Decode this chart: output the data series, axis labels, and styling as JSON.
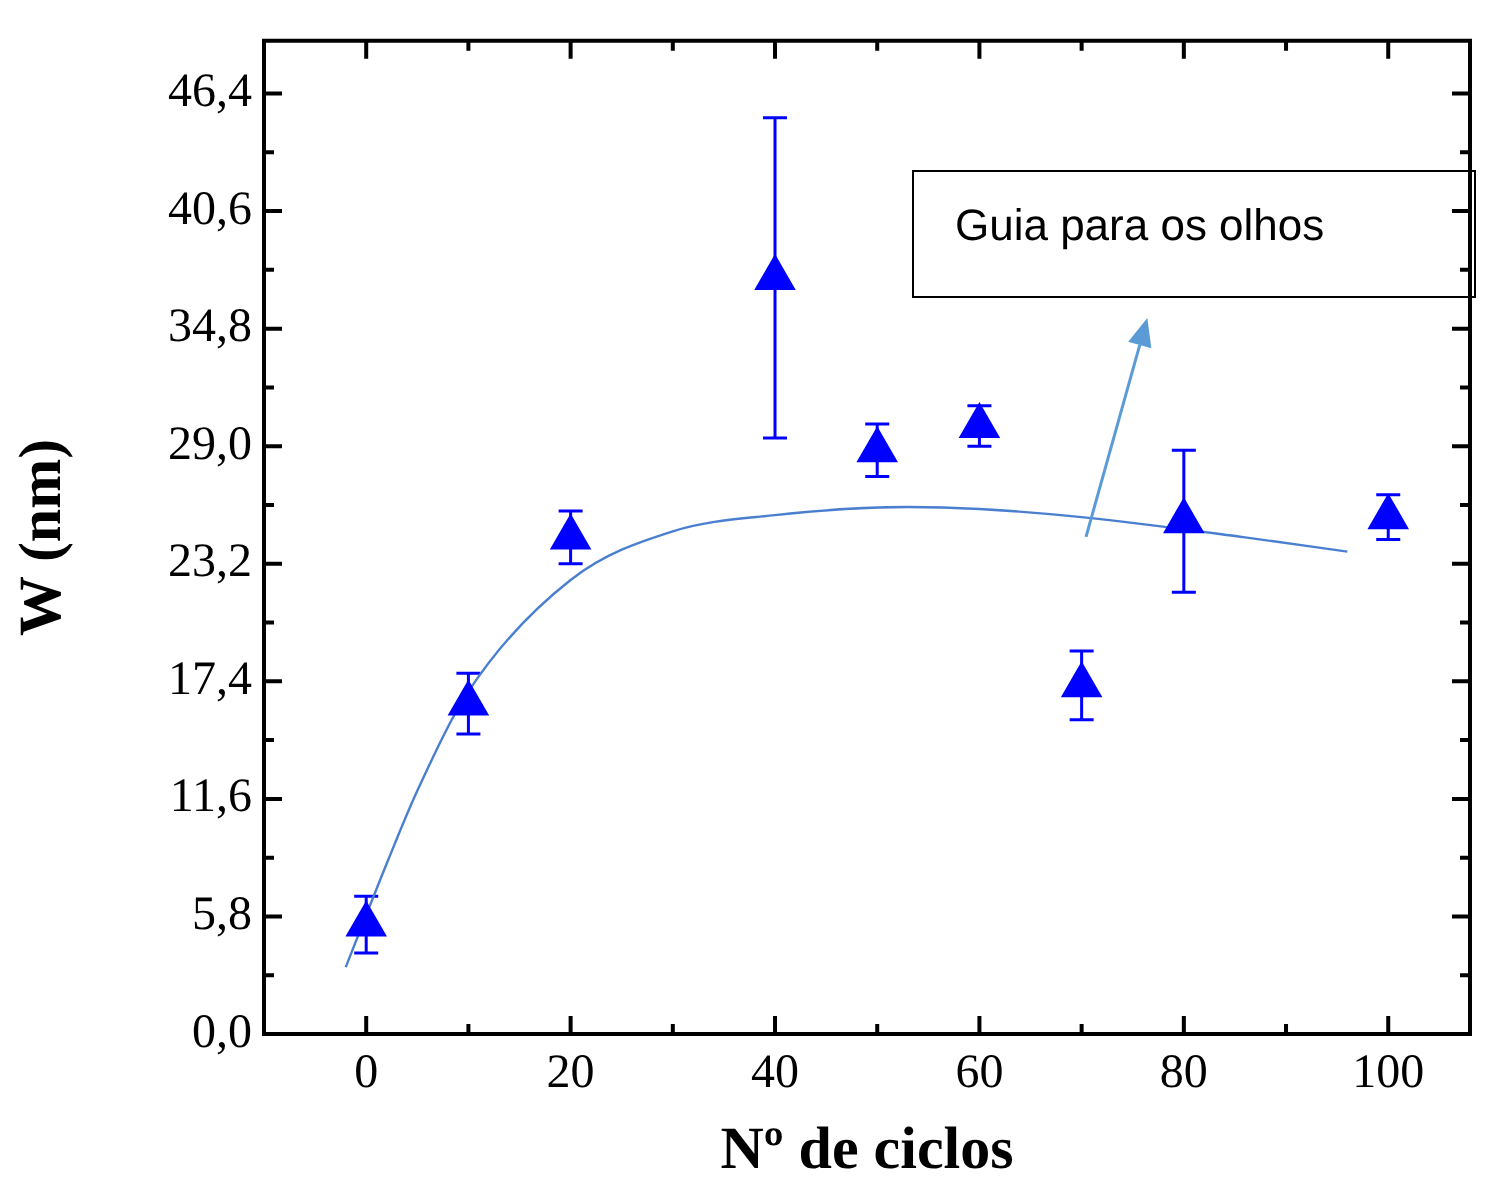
{
  "chart_data": {
    "type": "scatter",
    "xlabel": "Nº de ciclos",
    "ylabel": "W (nm)",
    "xlim": [
      -10,
      108
    ],
    "ylim": [
      0,
      49
    ],
    "xticks": [
      0,
      20,
      40,
      60,
      80,
      100
    ],
    "yticks": [
      {
        "value": 0,
        "label": "0,0"
      },
      {
        "value": 5.8,
        "label": "5,8"
      },
      {
        "value": 11.6,
        "label": "11,6"
      },
      {
        "value": 17.4,
        "label": "17,4"
      },
      {
        "value": 23.2,
        "label": "23,2"
      },
      {
        "value": 29,
        "label": "29,0"
      },
      {
        "value": 34.8,
        "label": "34,8"
      },
      {
        "value": 40.6,
        "label": "40,6"
      },
      {
        "value": 46.4,
        "label": "46,4"
      }
    ],
    "grid": false,
    "legend": false,
    "marker": "triangle",
    "annotations": [
      "Guia para os olhos"
    ],
    "series": [
      {
        "type": "scatter",
        "color": "#0000ff",
        "x": [
          0,
          10,
          20,
          40,
          50,
          60,
          70,
          80,
          100
        ],
        "values": [
          5.4,
          16.3,
          24.5,
          37.3,
          28.8,
          30.0,
          17.2,
          25.3,
          25.5
        ],
        "errors": [
          1.4,
          1.5,
          1.3,
          7.9,
          1.3,
          1.0,
          1.7,
          3.5,
          1.1
        ]
      },
      {
        "type": "line",
        "color": "#4a7fd0",
        "marker": "none",
        "line_style": "solid",
        "x": [
          -2,
          2,
          5,
          10,
          20,
          30,
          40,
          53,
          60,
          70,
          86,
          96
        ],
        "values": [
          3.3,
          8.4,
          12.0,
          16.9,
          22.4,
          24.8,
          25.6,
          26.0,
          25.9,
          25.5,
          24.5,
          23.8
        ]
      }
    ]
  }
}
